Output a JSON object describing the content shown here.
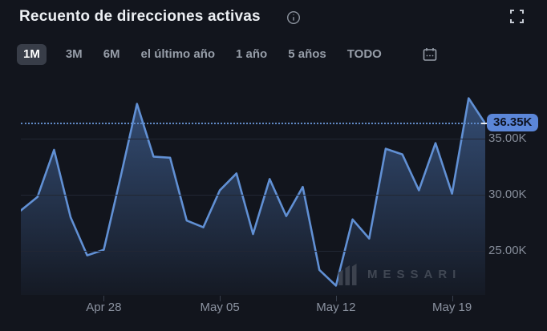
{
  "header": {
    "title": "Recuento de direcciones activas"
  },
  "toolbar": {
    "ranges": [
      "1M",
      "3M",
      "6M",
      "el último año",
      "1 año",
      "5 años",
      "TODO"
    ],
    "active_range": "1M"
  },
  "chart_data": {
    "type": "area",
    "title": "Recuento de direcciones activas",
    "x": [
      "Apr 23",
      "Apr 24",
      "Apr 25",
      "Apr 26",
      "Apr 27",
      "Apr 28",
      "Apr 29",
      "Apr 30",
      "May 01",
      "May 02",
      "May 03",
      "May 04",
      "May 05",
      "May 06",
      "May 07",
      "May 08",
      "May 09",
      "May 10",
      "May 11",
      "May 12",
      "May 13",
      "May 14",
      "May 15",
      "May 16",
      "May 17",
      "May 18",
      "May 19",
      "May 20",
      "May 21"
    ],
    "values": [
      28.6,
      29.8,
      34.0,
      28.0,
      24.6,
      25.1,
      31.5,
      38.1,
      33.4,
      33.3,
      27.7,
      27.1,
      30.4,
      31.9,
      26.5,
      31.4,
      28.1,
      30.7,
      23.3,
      21.9,
      27.8,
      26.1,
      34.1,
      33.6,
      30.4,
      34.6,
      30.1,
      38.6,
      36.35
    ],
    "unit": "K",
    "current_value": 36.35,
    "current_value_label": "36.35K",
    "y_axis": {
      "side": "right",
      "ylim": [
        21.07,
        39.5
      ],
      "ticks": [
        35,
        30,
        25
      ],
      "tick_labels": [
        "35.00K",
        "30.00K",
        "25.00K"
      ]
    },
    "x_axis": {
      "tick_indices": [
        5,
        12,
        19,
        26
      ],
      "tick_labels": [
        "Apr 28",
        "May 05",
        "May 12",
        "May 19"
      ]
    },
    "grid": "horizontal",
    "legend": "none",
    "colors": {
      "line": "#6190d4",
      "fill_top": "rgba(86,133,204,0.50)",
      "fill_bottom": "rgba(86,133,204,0.04)",
      "dotted_line": "#6f9fe4",
      "badge_bg": "#5b86d8",
      "badge_text": "#0e1322",
      "background": "#12151d"
    }
  },
  "watermark": {
    "text": "MESSARI"
  }
}
